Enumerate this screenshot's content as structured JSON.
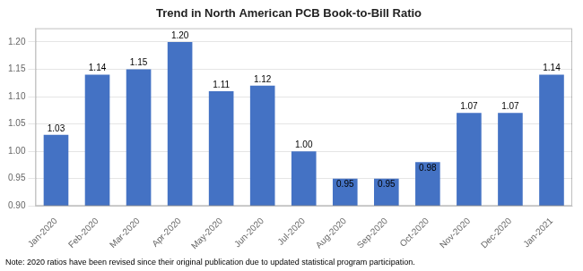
{
  "chart_data": {
    "type": "bar",
    "title": "Trend in North American PCB Book-to-Bill Ratio",
    "categories": [
      "Jan-2020",
      "Feb-2020",
      "Mar-2020",
      "Apr-2020",
      "May-2020",
      "Jun-2020",
      "Jul-2020",
      "Aug-2020",
      "Sep-2020",
      "Oct-2020",
      "Nov-2020",
      "Dec-2020",
      "Jan-2021"
    ],
    "values": [
      1.03,
      1.14,
      1.15,
      1.2,
      1.11,
      1.12,
      1.0,
      0.95,
      0.95,
      0.98,
      1.07,
      1.07,
      1.14
    ],
    "value_labels": [
      "1.03",
      "1.14",
      "1.15",
      "1.20",
      "1.11",
      "1.12",
      "1.00",
      "0.95",
      "0.95",
      "0.98",
      "1.07",
      "1.07",
      "1.14"
    ],
    "color": "#4472C4",
    "ylim": [
      0.9,
      1.225
    ],
    "yticks": [
      {
        "value": 0.9,
        "label": "0.90"
      },
      0.95,
      {
        "value": 1,
        "label": "1.00"
      },
      1.05,
      {
        "value": 1.1,
        "label": "1.10"
      },
      1.15,
      {
        "value": 1.2,
        "label": "1.20"
      }
    ],
    "grid": true,
    "data_labels": true,
    "annotations": [
      "Note: 2020 ratios have been revised since their original publication due to updated statistical program participation."
    ]
  }
}
